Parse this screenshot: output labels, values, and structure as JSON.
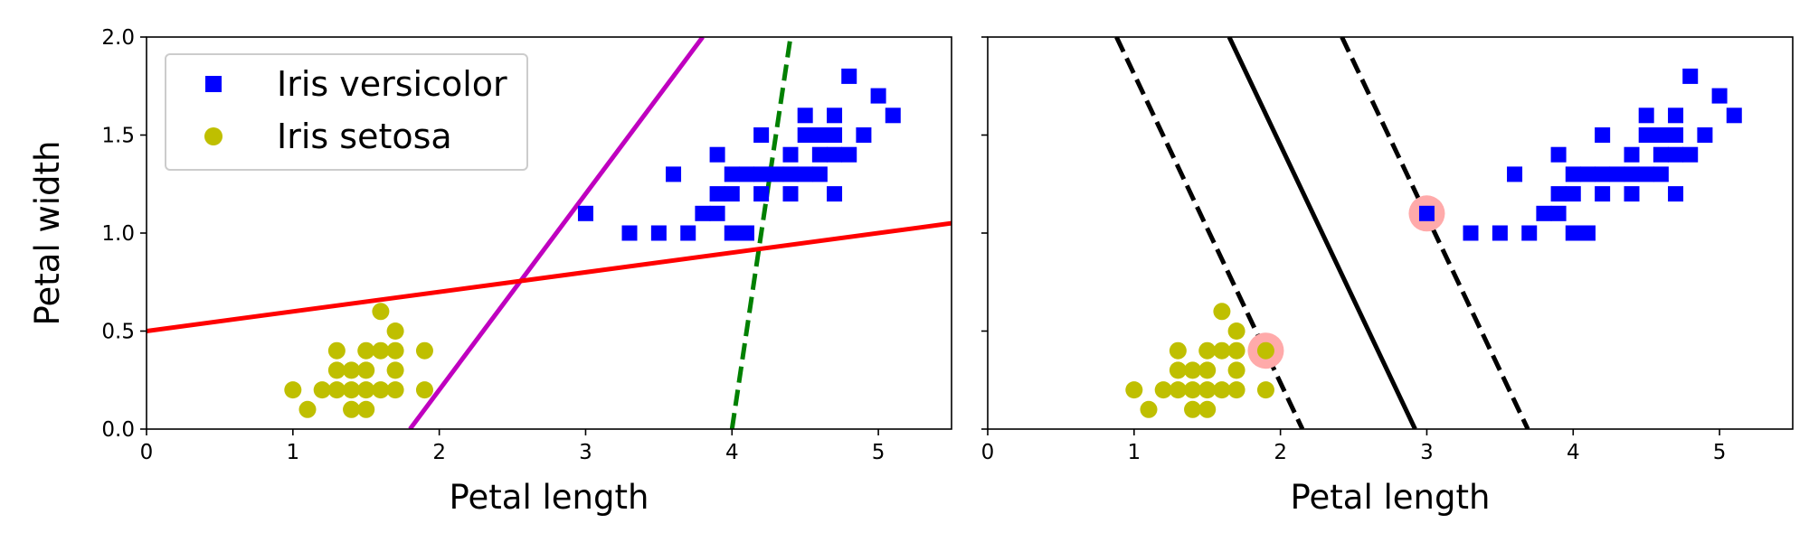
{
  "chart_data": [
    {
      "type": "scatter",
      "xlabel": "Petal length",
      "ylabel": "Petal width",
      "xlim": [
        0,
        5.5
      ],
      "ylim": [
        0,
        2.0
      ],
      "xticks": [
        "0",
        "1",
        "2",
        "3",
        "4",
        "5"
      ],
      "yticks": [
        "0.0",
        "0.5",
        "1.0",
        "1.5",
        "2.0"
      ],
      "legend_position": "top-left",
      "series": [
        {
          "name": "Iris versicolor",
          "marker": "square",
          "color": "#0000ff",
          "points": [
            [
              3.0,
              1.1
            ],
            [
              3.3,
              1.0
            ],
            [
              3.5,
              1.0
            ],
            [
              3.7,
              1.0
            ],
            [
              3.6,
              1.3
            ],
            [
              3.8,
              1.1
            ],
            [
              3.9,
              1.1
            ],
            [
              3.9,
              1.2
            ],
            [
              4.0,
              1.2
            ],
            [
              3.9,
              1.4
            ],
            [
              4.0,
              1.0
            ],
            [
              4.1,
              1.0
            ],
            [
              4.0,
              1.3
            ],
            [
              4.1,
              1.3
            ],
            [
              4.2,
              1.3
            ],
            [
              4.3,
              1.3
            ],
            [
              4.4,
              1.3
            ],
            [
              4.5,
              1.3
            ],
            [
              4.6,
              1.3
            ],
            [
              4.2,
              1.2
            ],
            [
              4.4,
              1.2
            ],
            [
              4.2,
              1.5
            ],
            [
              4.4,
              1.4
            ],
            [
              4.5,
              1.5
            ],
            [
              4.5,
              1.6
            ],
            [
              4.6,
              1.4
            ],
            [
              4.6,
              1.5
            ],
            [
              4.7,
              1.4
            ],
            [
              4.7,
              1.5
            ],
            [
              4.7,
              1.6
            ],
            [
              4.7,
              1.2
            ],
            [
              4.8,
              1.4
            ],
            [
              4.8,
              1.8
            ],
            [
              4.9,
              1.5
            ],
            [
              5.0,
              1.7
            ],
            [
              5.1,
              1.6
            ]
          ]
        },
        {
          "name": "Iris setosa",
          "marker": "circle",
          "color": "#bfbf00",
          "points": [
            [
              1.0,
              0.2
            ],
            [
              1.1,
              0.1
            ],
            [
              1.2,
              0.2
            ],
            [
              1.3,
              0.2
            ],
            [
              1.3,
              0.3
            ],
            [
              1.3,
              0.4
            ],
            [
              1.4,
              0.1
            ],
            [
              1.4,
              0.2
            ],
            [
              1.4,
              0.3
            ],
            [
              1.5,
              0.1
            ],
            [
              1.5,
              0.2
            ],
            [
              1.5,
              0.3
            ],
            [
              1.5,
              0.4
            ],
            [
              1.6,
              0.2
            ],
            [
              1.6,
              0.4
            ],
            [
              1.6,
              0.6
            ],
            [
              1.7,
              0.2
            ],
            [
              1.7,
              0.3
            ],
            [
              1.7,
              0.4
            ],
            [
              1.7,
              0.5
            ],
            [
              1.9,
              0.2
            ],
            [
              1.9,
              0.4
            ]
          ]
        }
      ],
      "lines": [
        {
          "color": "#008000",
          "style": "dashed",
          "points": [
            [
              4.0,
              0.0
            ],
            [
              4.4,
              2.0
            ]
          ]
        },
        {
          "color": "#bf00bf",
          "style": "solid",
          "points": [
            [
              1.8,
              0.0
            ],
            [
              3.8,
              2.0
            ]
          ]
        },
        {
          "color": "#ff0000",
          "style": "solid",
          "points": [
            [
              0.0,
              0.5
            ],
            [
              5.5,
              1.05
            ]
          ]
        }
      ]
    },
    {
      "type": "scatter",
      "xlabel": "Petal length",
      "xlim": [
        0,
        5.5
      ],
      "ylim": [
        0,
        2.0
      ],
      "xticks": [
        "0",
        "1",
        "2",
        "3",
        "4",
        "5"
      ],
      "series": [
        {
          "name": "Iris versicolor",
          "marker": "square",
          "color": "#0000ff",
          "points": [
            [
              3.0,
              1.1
            ],
            [
              3.3,
              1.0
            ],
            [
              3.5,
              1.0
            ],
            [
              3.7,
              1.0
            ],
            [
              3.6,
              1.3
            ],
            [
              3.8,
              1.1
            ],
            [
              3.9,
              1.1
            ],
            [
              3.9,
              1.2
            ],
            [
              4.0,
              1.2
            ],
            [
              3.9,
              1.4
            ],
            [
              4.0,
              1.0
            ],
            [
              4.1,
              1.0
            ],
            [
              4.0,
              1.3
            ],
            [
              4.1,
              1.3
            ],
            [
              4.2,
              1.3
            ],
            [
              4.3,
              1.3
            ],
            [
              4.4,
              1.3
            ],
            [
              4.5,
              1.3
            ],
            [
              4.6,
              1.3
            ],
            [
              4.2,
              1.2
            ],
            [
              4.4,
              1.2
            ],
            [
              4.2,
              1.5
            ],
            [
              4.4,
              1.4
            ],
            [
              4.5,
              1.5
            ],
            [
              4.5,
              1.6
            ],
            [
              4.6,
              1.4
            ],
            [
              4.6,
              1.5
            ],
            [
              4.7,
              1.4
            ],
            [
              4.7,
              1.5
            ],
            [
              4.7,
              1.6
            ],
            [
              4.7,
              1.2
            ],
            [
              4.8,
              1.4
            ],
            [
              4.8,
              1.8
            ],
            [
              4.9,
              1.5
            ],
            [
              5.0,
              1.7
            ],
            [
              5.1,
              1.6
            ]
          ]
        },
        {
          "name": "Iris setosa",
          "marker": "circle",
          "color": "#bfbf00",
          "points": [
            [
              1.0,
              0.2
            ],
            [
              1.1,
              0.1
            ],
            [
              1.2,
              0.2
            ],
            [
              1.3,
              0.2
            ],
            [
              1.3,
              0.3
            ],
            [
              1.3,
              0.4
            ],
            [
              1.4,
              0.1
            ],
            [
              1.4,
              0.2
            ],
            [
              1.4,
              0.3
            ],
            [
              1.5,
              0.1
            ],
            [
              1.5,
              0.2
            ],
            [
              1.5,
              0.3
            ],
            [
              1.5,
              0.4
            ],
            [
              1.6,
              0.2
            ],
            [
              1.6,
              0.4
            ],
            [
              1.6,
              0.6
            ],
            [
              1.7,
              0.2
            ],
            [
              1.7,
              0.3
            ],
            [
              1.7,
              0.4
            ],
            [
              1.7,
              0.5
            ],
            [
              1.9,
              0.2
            ],
            [
              1.9,
              0.4
            ]
          ]
        }
      ],
      "support_vectors": {
        "color": "#ffaaaa",
        "points": [
          [
            1.9,
            0.4
          ],
          [
            3.0,
            1.1
          ]
        ]
      },
      "lines": [
        {
          "color": "#000000",
          "style": "solid",
          "points": [
            [
              1.65,
              2.0
            ],
            [
              2.92,
              0.0
            ]
          ]
        },
        {
          "color": "#000000",
          "style": "dashed",
          "points": [
            [
              0.88,
              2.0
            ],
            [
              2.15,
              0.0
            ]
          ]
        },
        {
          "color": "#000000",
          "style": "dashed",
          "points": [
            [
              2.42,
              2.0
            ],
            [
              3.69,
              0.0
            ]
          ]
        }
      ]
    }
  ]
}
